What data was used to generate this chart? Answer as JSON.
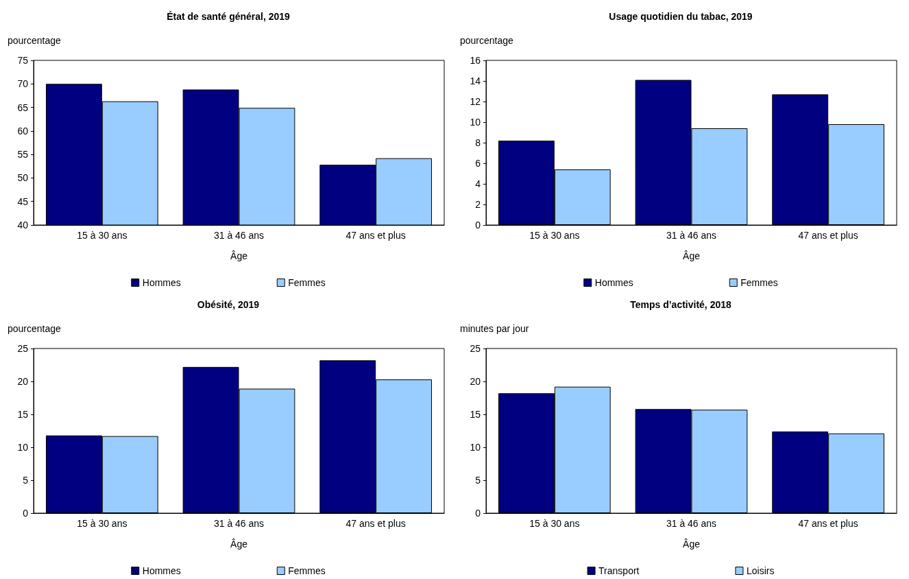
{
  "chart_data": [
    {
      "type": "bar",
      "title": "État de santé général, 2019",
      "ylabel": "pourcentage",
      "xlabel": "Âge",
      "categories": [
        "15 à 30 ans",
        "31 à 46 ans",
        "47 ans et plus"
      ],
      "series": [
        {
          "name": "Hommes",
          "color": "#000080",
          "values": [
            70,
            68.8,
            52.8
          ]
        },
        {
          "name": "Femmes",
          "color": "#99ccff",
          "values": [
            66.3,
            64.9,
            54.2
          ]
        }
      ],
      "ylim": [
        40,
        75
      ],
      "yticks": [
        40,
        45,
        50,
        55,
        60,
        65,
        70,
        75
      ],
      "grid": false,
      "legend": "bottom"
    },
    {
      "type": "bar",
      "title": "Usage quotidien du tabac, 2019",
      "ylabel": "pourcentage",
      "xlabel": "Âge",
      "categories": [
        "15 à 30 ans",
        "31 à 46 ans",
        "47 ans et plus"
      ],
      "series": [
        {
          "name": "Hommes",
          "color": "#000080",
          "values": [
            8.2,
            14.1,
            12.7
          ]
        },
        {
          "name": "Femmes",
          "color": "#99ccff",
          "values": [
            5.4,
            9.4,
            9.8
          ]
        }
      ],
      "ylim": [
        0,
        16
      ],
      "yticks": [
        0,
        2,
        4,
        6,
        8,
        10,
        12,
        14,
        16
      ],
      "grid": false,
      "legend": "bottom"
    },
    {
      "type": "bar",
      "title": "Obésité, 2019",
      "ylabel": "pourcentage",
      "xlabel": "Âge",
      "categories": [
        "15 à 30 ans",
        "31 à 46 ans",
        "47 ans et plus"
      ],
      "series": [
        {
          "name": "Hommes",
          "color": "#000080",
          "values": [
            11.8,
            22.2,
            23.2
          ]
        },
        {
          "name": "Femmes",
          "color": "#99ccff",
          "values": [
            11.7,
            18.9,
            20.3
          ]
        }
      ],
      "ylim": [
        0,
        25
      ],
      "yticks": [
        0,
        5,
        10,
        15,
        20,
        25
      ],
      "grid": false,
      "legend": "bottom"
    },
    {
      "type": "bar",
      "title": "Temps d’activité, 2018",
      "ylabel": "minutes par jour",
      "xlabel": "Âge",
      "categories": [
        "15 à 30 ans",
        "31 à 46 ans",
        "47 ans et plus"
      ],
      "series": [
        {
          "name": "Transport",
          "color": "#000080",
          "values": [
            18.2,
            15.8,
            12.4
          ]
        },
        {
          "name": "Loisirs",
          "color": "#99ccff",
          "values": [
            19.2,
            15.7,
            12.1
          ]
        }
      ],
      "ylim": [
        0,
        25
      ],
      "yticks": [
        0,
        5,
        10,
        15,
        20,
        25
      ],
      "grid": false,
      "legend": "bottom"
    }
  ]
}
